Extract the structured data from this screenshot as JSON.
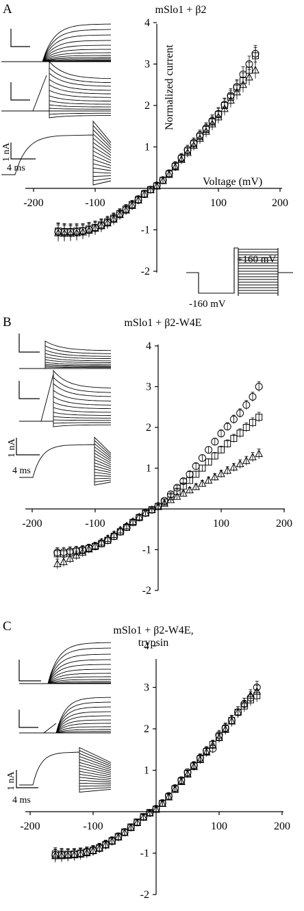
{
  "figure": {
    "panels": [
      {
        "letter": "A",
        "title_lines": [
          "mSlo1 + β2"
        ]
      },
      {
        "letter": "B",
        "title_lines": [
          "mSlo1 + β2-W4E"
        ]
      },
      {
        "letter": "C",
        "title_lines": [
          "mSlo1 + β2-W4E,",
          "trypsin"
        ]
      }
    ],
    "axis_labels": {
      "y": "Normalized current",
      "x": "Voltage (mV)"
    },
    "scale_bar": {
      "current": "1 nA",
      "time": "4 ms"
    },
    "protocol": {
      "depolarized": "+160 mV",
      "holding": "-160 mV"
    }
  },
  "chart_data": [
    {
      "type": "scatter",
      "panel": "A",
      "title": "mSlo1 + β2",
      "xlabel": "Voltage (mV)",
      "ylabel": "Normalized current",
      "xlim": [
        -200,
        200
      ],
      "ylim": [
        -2,
        4
      ],
      "x_ticks": [
        -200,
        -100,
        100,
        200
      ],
      "y_ticks": [
        -2,
        -1,
        1,
        2,
        3,
        4
      ],
      "grid": false,
      "x": [
        -160,
        -150,
        -140,
        -130,
        -120,
        -110,
        -100,
        -90,
        -80,
        -70,
        -60,
        -50,
        -40,
        -30,
        -20,
        -10,
        0,
        10,
        20,
        30,
        40,
        50,
        60,
        70,
        80,
        90,
        100,
        110,
        120,
        130,
        140,
        150,
        160
      ],
      "series": [
        {
          "marker": "circle",
          "values": [
            -1.05,
            -1.06,
            -1.06,
            -1.05,
            -1.03,
            -1.0,
            -0.96,
            -0.9,
            -0.83,
            -0.74,
            -0.63,
            -0.52,
            -0.41,
            -0.28,
            -0.14,
            -0.03,
            0.07,
            0.2,
            0.36,
            0.55,
            0.74,
            0.93,
            1.1,
            1.28,
            1.45,
            1.63,
            1.8,
            2.02,
            2.24,
            2.45,
            2.75,
            3.0,
            3.25
          ]
        },
        {
          "marker": "square",
          "values": [
            -1.03,
            -1.04,
            -1.04,
            -1.03,
            -1.02,
            -0.98,
            -0.94,
            -0.88,
            -0.81,
            -0.72,
            -0.61,
            -0.5,
            -0.39,
            -0.27,
            -0.13,
            -0.03,
            0.06,
            0.19,
            0.35,
            0.53,
            0.72,
            0.9,
            1.07,
            1.25,
            1.42,
            1.6,
            1.78,
            2.0,
            2.2,
            2.42,
            2.6,
            2.85,
            3.2
          ]
        },
        {
          "marker": "triangle",
          "values": [
            -1.08,
            -1.09,
            -1.09,
            -1.08,
            -1.06,
            -1.02,
            -0.97,
            -0.91,
            -0.84,
            -0.75,
            -0.64,
            -0.53,
            -0.42,
            -0.29,
            -0.15,
            -0.04,
            0.05,
            0.18,
            0.33,
            0.51,
            0.69,
            0.86,
            1.03,
            1.2,
            1.37,
            1.55,
            1.72,
            1.92,
            2.12,
            2.32,
            2.5,
            2.68,
            2.85
          ]
        }
      ],
      "error_bar": 0.2
    },
    {
      "type": "scatter",
      "panel": "B",
      "title": "mSlo1 + β2-W4E",
      "xlim": [
        -200,
        200
      ],
      "ylim": [
        -2,
        4
      ],
      "x_ticks": [
        -200,
        -100,
        100,
        200
      ],
      "y_ticks": [
        -2,
        -1,
        1,
        2,
        3,
        4
      ],
      "grid": false,
      "x": [
        -160,
        -150,
        -140,
        -130,
        -120,
        -110,
        -100,
        -90,
        -80,
        -70,
        -60,
        -50,
        -40,
        -30,
        -20,
        -10,
        0,
        10,
        20,
        30,
        40,
        50,
        60,
        70,
        80,
        90,
        100,
        110,
        120,
        130,
        140,
        150,
        160
      ],
      "series": [
        {
          "marker": "circle",
          "values": [
            -1.07,
            -1.06,
            -1.04,
            -1.02,
            -1.0,
            -0.96,
            -0.92,
            -0.85,
            -0.77,
            -0.67,
            -0.56,
            -0.45,
            -0.33,
            -0.21,
            -0.1,
            -0.02,
            0.07,
            0.2,
            0.36,
            0.52,
            0.68,
            0.85,
            1.05,
            1.25,
            1.45,
            1.65,
            1.85,
            2.02,
            2.2,
            2.35,
            2.55,
            2.75,
            3.0
          ]
        },
        {
          "marker": "square",
          "values": [
            -1.1,
            -1.1,
            -1.08,
            -1.05,
            -1.02,
            -0.97,
            -0.92,
            -0.85,
            -0.77,
            -0.67,
            -0.56,
            -0.45,
            -0.33,
            -0.21,
            -0.1,
            -0.02,
            0.06,
            0.17,
            0.3,
            0.43,
            0.56,
            0.7,
            0.85,
            1.0,
            1.15,
            1.3,
            1.45,
            1.6,
            1.73,
            1.86,
            2.0,
            2.12,
            2.25
          ]
        },
        {
          "marker": "triangle",
          "values": [
            -1.35,
            -1.3,
            -1.22,
            -1.14,
            -1.07,
            -0.99,
            -0.91,
            -0.82,
            -0.73,
            -0.63,
            -0.52,
            -0.42,
            -0.31,
            -0.2,
            -0.1,
            -0.02,
            0.05,
            0.13,
            0.22,
            0.3,
            0.38,
            0.46,
            0.54,
            0.62,
            0.7,
            0.78,
            0.86,
            0.94,
            1.02,
            1.1,
            1.18,
            1.27,
            1.35
          ]
        }
      ],
      "error_bar": 0.12
    },
    {
      "type": "scatter",
      "panel": "C",
      "title": "mSlo1 + β2-W4E, trypsin",
      "xlim": [
        -200,
        200
      ],
      "ylim": [
        -2,
        4
      ],
      "x_ticks": [
        -200,
        -100,
        100,
        200
      ],
      "y_ticks": [
        -2,
        -1,
        1,
        2,
        3,
        4
      ],
      "grid": false,
      "x": [
        -160,
        -150,
        -140,
        -130,
        -120,
        -110,
        -100,
        -90,
        -80,
        -70,
        -60,
        -50,
        -40,
        -30,
        -20,
        -10,
        0,
        10,
        20,
        30,
        40,
        50,
        60,
        70,
        80,
        90,
        100,
        110,
        120,
        130,
        140,
        150,
        160
      ],
      "series": [
        {
          "marker": "circle",
          "values": [
            -1.05,
            -1.05,
            -1.04,
            -1.03,
            -1.01,
            -0.98,
            -0.94,
            -0.88,
            -0.8,
            -0.71,
            -0.61,
            -0.5,
            -0.38,
            -0.26,
            -0.13,
            -0.03,
            0.07,
            0.21,
            0.38,
            0.57,
            0.76,
            0.95,
            1.12,
            1.3,
            1.47,
            1.52,
            1.85,
            2.02,
            2.2,
            2.4,
            2.6,
            2.75,
            3.0
          ]
        },
        {
          "marker": "square",
          "values": [
            -1.02,
            -1.03,
            -1.03,
            -1.02,
            -1.0,
            -0.97,
            -0.93,
            -0.87,
            -0.79,
            -0.7,
            -0.6,
            -0.49,
            -0.37,
            -0.25,
            -0.12,
            -0.02,
            0.06,
            0.2,
            0.36,
            0.55,
            0.74,
            0.92,
            1.1,
            1.27,
            1.45,
            1.62,
            1.8,
            2.0,
            2.2,
            2.4,
            2.55,
            2.7,
            2.8
          ]
        },
        {
          "marker": "triangle",
          "values": [
            -1.07,
            -1.07,
            -1.06,
            -1.05,
            -1.03,
            -1.0,
            -0.95,
            -0.89,
            -0.81,
            -0.72,
            -0.62,
            -0.51,
            -0.39,
            -0.27,
            -0.14,
            -0.04,
            0.05,
            0.19,
            0.35,
            0.53,
            0.72,
            0.9,
            1.08,
            1.25,
            1.43,
            1.6,
            1.78,
            1.98,
            2.18,
            2.4,
            2.6,
            2.8,
            2.9
          ]
        }
      ],
      "error_bar": 0.15
    }
  ]
}
